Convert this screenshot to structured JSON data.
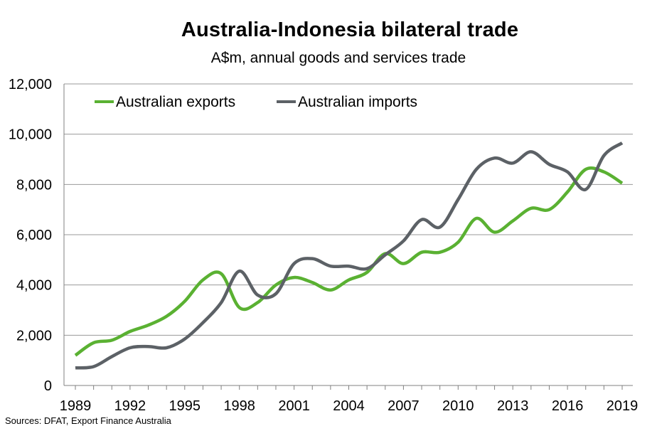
{
  "chart_data": {
    "type": "line",
    "title": "Australia-Indonesia bilateral trade",
    "subtitle": "A$m, annual goods and services trade",
    "source": "Sources: DFAT, Export Finance Australia",
    "xlabel": "",
    "ylabel": "",
    "x": [
      1989,
      1990,
      1991,
      1992,
      1993,
      1994,
      1995,
      1996,
      1997,
      1998,
      1999,
      2000,
      2001,
      2002,
      2003,
      2004,
      2005,
      2006,
      2007,
      2008,
      2009,
      2010,
      2011,
      2012,
      2013,
      2014,
      2015,
      2016,
      2017,
      2018,
      2019
    ],
    "x_ticks": [
      "1989",
      "1992",
      "1995",
      "1998",
      "2001",
      "2004",
      "2007",
      "2010",
      "2013",
      "2016",
      "2019"
    ],
    "y_ticks": [
      "0",
      "2,000",
      "4,000",
      "6,000",
      "8,000",
      "10,000",
      "12,000"
    ],
    "ylim": [
      0,
      12000
    ],
    "grid": "horizontal",
    "legend_position": "top-left",
    "series": [
      {
        "name": "Australian exports",
        "color": "#5ab132",
        "values": [
          1200,
          1700,
          1800,
          2150,
          2400,
          2750,
          3350,
          4200,
          4450,
          3100,
          3300,
          4000,
          4300,
          4100,
          3800,
          4200,
          4500,
          5250,
          4850,
          5300,
          5300,
          5700,
          6650,
          6100,
          6550,
          7050,
          7000,
          7700,
          8600,
          8500,
          8050
        ]
      },
      {
        "name": "Australian imports",
        "color": "#5c6166",
        "values": [
          700,
          750,
          1150,
          1500,
          1550,
          1500,
          1850,
          2500,
          3300,
          4550,
          3600,
          3650,
          4850,
          5050,
          4750,
          4750,
          4650,
          5200,
          5750,
          6600,
          6300,
          7400,
          8600,
          9050,
          8850,
          9300,
          8800,
          8500,
          7800,
          9150,
          9650
        ]
      }
    ]
  }
}
